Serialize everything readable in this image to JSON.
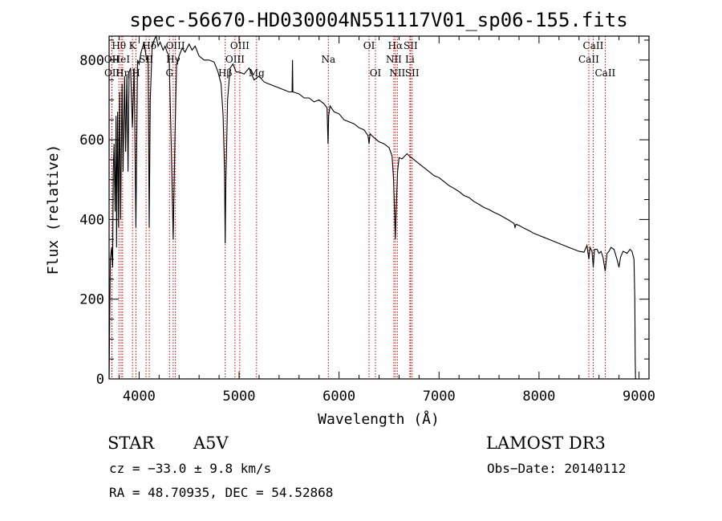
{
  "chart_data": {
    "type": "line",
    "title": "spec-56670-HD030004N551117V01_sp06-155.fits",
    "xlabel": "Wavelength (Å)",
    "ylabel": "Flux (relative)",
    "xlim": [
      3700,
      9100
    ],
    "ylim": [
      0,
      860
    ],
    "x_ticks": [
      4000,
      5000,
      6000,
      7000,
      8000,
      9000
    ],
    "y_ticks": [
      0,
      200,
      400,
      600,
      800
    ],
    "x_tick_labels": [
      "4000",
      "5000",
      "6000",
      "7000",
      "8000",
      "9000"
    ],
    "y_tick_labels": [
      "0",
      "200",
      "400",
      "600",
      "800"
    ],
    "series": [
      {
        "name": "spectrum",
        "color": "#000000",
        "points": [
          [
            3700,
            0
          ],
          [
            3705,
            120
          ],
          [
            3712,
            300
          ],
          [
            3725,
            330
          ],
          [
            3735,
            280
          ],
          [
            3742,
            520
          ],
          [
            3750,
            590
          ],
          [
            3760,
            420
          ],
          [
            3770,
            660
          ],
          [
            3775,
            330
          ],
          [
            3785,
            670
          ],
          [
            3795,
            380
          ],
          [
            3805,
            720
          ],
          [
            3815,
            400
          ],
          [
            3830,
            740
          ],
          [
            3840,
            520
          ],
          [
            3855,
            760
          ],
          [
            3865,
            570
          ],
          [
            3878,
            765
          ],
          [
            3889,
            520
          ],
          [
            3900,
            770
          ],
          [
            3915,
            780
          ],
          [
            3933,
            630
          ],
          [
            3950,
            780
          ],
          [
            3968,
            380
          ],
          [
            3985,
            800
          ],
          [
            4000,
            790
          ],
          [
            4020,
            820
          ],
          [
            4050,
            845
          ],
          [
            4075,
            800
          ],
          [
            4090,
            810
          ],
          [
            4101,
            380
          ],
          [
            4112,
            700
          ],
          [
            4130,
            830
          ],
          [
            4150,
            850
          ],
          [
            4170,
            860
          ],
          [
            4190,
            835
          ],
          [
            4210,
            845
          ],
          [
            4240,
            825
          ],
          [
            4260,
            835
          ],
          [
            4280,
            820
          ],
          [
            4300,
            810
          ],
          [
            4320,
            600
          ],
          [
            4341,
            350
          ],
          [
            4358,
            600
          ],
          [
            4375,
            790
          ],
          [
            4400,
            810
          ],
          [
            4430,
            830
          ],
          [
            4460,
            820
          ],
          [
            4500,
            840
          ],
          [
            4530,
            825
          ],
          [
            4560,
            835
          ],
          [
            4600,
            810
          ],
          [
            4650,
            800
          ],
          [
            4700,
            800
          ],
          [
            4750,
            795
          ],
          [
            4790,
            770
          ],
          [
            4820,
            740
          ],
          [
            4840,
            660
          ],
          [
            4855,
            520
          ],
          [
            4861,
            340
          ],
          [
            4868,
            500
          ],
          [
            4885,
            700
          ],
          [
            4910,
            780
          ],
          [
            4940,
            790
          ],
          [
            4970,
            770
          ],
          [
            5000,
            770
          ],
          [
            5050,
            765
          ],
          [
            5100,
            780
          ],
          [
            5150,
            750
          ],
          [
            5200,
            760
          ],
          [
            5250,
            745
          ],
          [
            5300,
            740
          ],
          [
            5350,
            735
          ],
          [
            5400,
            730
          ],
          [
            5450,
            725
          ],
          [
            5500,
            720
          ],
          [
            5530,
            720
          ],
          [
            5534,
            800
          ],
          [
            5538,
            720
          ],
          [
            5600,
            715
          ],
          [
            5650,
            705
          ],
          [
            5700,
            705
          ],
          [
            5750,
            695
          ],
          [
            5800,
            700
          ],
          [
            5850,
            690
          ],
          [
            5880,
            680
          ],
          [
            5890,
            590
          ],
          [
            5896,
            660
          ],
          [
            5910,
            685
          ],
          [
            5950,
            670
          ],
          [
            6000,
            665
          ],
          [
            6050,
            650
          ],
          [
            6100,
            645
          ],
          [
            6150,
            640
          ],
          [
            6200,
            630
          ],
          [
            6250,
            625
          ],
          [
            6290,
            610
          ],
          [
            6300,
            590
          ],
          [
            6310,
            615
          ],
          [
            6350,
            605
          ],
          [
            6400,
            595
          ],
          [
            6450,
            590
          ],
          [
            6500,
            580
          ],
          [
            6530,
            560
          ],
          [
            6545,
            500
          ],
          [
            6555,
            420
          ],
          [
            6563,
            350
          ],
          [
            6571,
            420
          ],
          [
            6585,
            520
          ],
          [
            6600,
            555
          ],
          [
            6630,
            552
          ],
          [
            6660,
            560
          ],
          [
            6680,
            565
          ],
          [
            6700,
            560
          ],
          [
            6750,
            550
          ],
          [
            6800,
            540
          ],
          [
            6850,
            530
          ],
          [
            6900,
            520
          ],
          [
            6950,
            510
          ],
          [
            7000,
            505
          ],
          [
            7050,
            495
          ],
          [
            7100,
            485
          ],
          [
            7150,
            478
          ],
          [
            7200,
            470
          ],
          [
            7250,
            460
          ],
          [
            7300,
            455
          ],
          [
            7350,
            445
          ],
          [
            7400,
            438
          ],
          [
            7450,
            430
          ],
          [
            7500,
            425
          ],
          [
            7550,
            418
          ],
          [
            7600,
            412
          ],
          [
            7650,
            405
          ],
          [
            7700,
            398
          ],
          [
            7750,
            390
          ],
          [
            7760,
            380
          ],
          [
            7770,
            388
          ],
          [
            7800,
            385
          ],
          [
            7850,
            378
          ],
          [
            7900,
            372
          ],
          [
            7950,
            365
          ],
          [
            8000,
            360
          ],
          [
            8050,
            355
          ],
          [
            8100,
            350
          ],
          [
            8150,
            345
          ],
          [
            8200,
            340
          ],
          [
            8250,
            335
          ],
          [
            8300,
            330
          ],
          [
            8350,
            325
          ],
          [
            8400,
            320
          ],
          [
            8450,
            318
          ],
          [
            8480,
            335
          ],
          [
            8498,
            300
          ],
          [
            8510,
            330
          ],
          [
            8530,
            320
          ],
          [
            8542,
            280
          ],
          [
            8555,
            325
          ],
          [
            8580,
            325
          ],
          [
            8600,
            315
          ],
          [
            8620,
            320
          ],
          [
            8640,
            305
          ],
          [
            8662,
            270
          ],
          [
            8680,
            315
          ],
          [
            8700,
            320
          ],
          [
            8720,
            330
          ],
          [
            8750,
            325
          ],
          [
            8780,
            300
          ],
          [
            8800,
            280
          ],
          [
            8815,
            305
          ],
          [
            8840,
            320
          ],
          [
            8860,
            318
          ],
          [
            8880,
            315
          ],
          [
            8910,
            325
          ],
          [
            8930,
            320
          ],
          [
            8950,
            300
          ],
          [
            8958,
            200
          ],
          [
            8962,
            50
          ],
          [
            8965,
            0
          ]
        ]
      }
    ],
    "annotations": [
      {
        "label": "Hθ",
        "x": 3798,
        "tier": 0
      },
      {
        "label": "OII",
        "x": 3727,
        "tier": 1
      },
      {
        "label": "OII",
        "x": 3729,
        "tier": 2
      },
      {
        "label": "HeI",
        "x": 3820,
        "tier": 1
      },
      {
        "label": "Hη",
        "x": 3835,
        "tier": 2
      },
      {
        "label": "K",
        "x": 3934,
        "tier": 0
      },
      {
        "label": "SII",
        "x": 4070,
        "tier": 1
      },
      {
        "label": "H",
        "x": 3969,
        "tier": 2
      },
      {
        "label": "Hδ",
        "x": 4102,
        "tier": 0
      },
      {
        "label": "OIII",
        "x": 4363,
        "tier": 0
      },
      {
        "label": "Hγ",
        "x": 4341,
        "tier": 1
      },
      {
        "label": "G",
        "x": 4304,
        "tier": 2
      },
      {
        "label": "Hβ",
        "x": 4861,
        "tier": 2
      },
      {
        "label": "OIII",
        "x": 5007,
        "tier": 0
      },
      {
        "label": "OIII",
        "x": 4959,
        "tier": 1
      },
      {
        "label": "Mg",
        "x": 5175,
        "tier": 2
      },
      {
        "label": "Na",
        "x": 5893,
        "tier": 1
      },
      {
        "label": "OI",
        "x": 6300,
        "tier": 0
      },
      {
        "label": "OI",
        "x": 6364,
        "tier": 2
      },
      {
        "label": "Hα",
        "x": 6563,
        "tier": 0
      },
      {
        "label": "SII",
        "x": 6716,
        "tier": 0
      },
      {
        "label": "NII",
        "x": 6548,
        "tier": 1
      },
      {
        "label": "Li",
        "x": 6708,
        "tier": 1
      },
      {
        "label": "NII",
        "x": 6583,
        "tier": 2
      },
      {
        "label": "SII",
        "x": 6731,
        "tier": 2
      },
      {
        "label": "CaII",
        "x": 8542,
        "tier": 0
      },
      {
        "label": "CaII",
        "x": 8498,
        "tier": 1
      },
      {
        "label": "CaII",
        "x": 8662,
        "tier": 2
      }
    ],
    "annotation_line_color": "#cc0000"
  },
  "info": {
    "object_type": "STAR",
    "subclass": "A5V",
    "survey": "LAMOST DR3",
    "cz": "cz = −33.0 ± 9.8 km/s",
    "obs_date": "Obs−Date: 20140112",
    "coords": "RA =  48.70935, DEC =  54.52868"
  }
}
